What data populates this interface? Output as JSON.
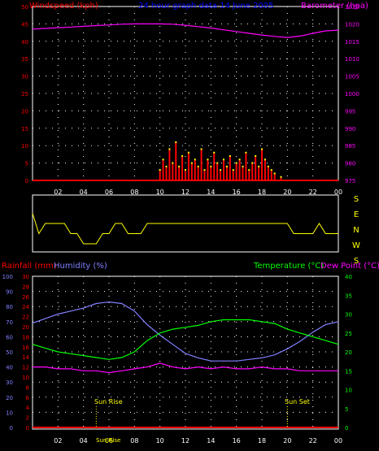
{
  "header": {
    "windspeed_label": "Windspeed (kph)",
    "title": "24 hour graph data  14 June 2005",
    "barometer_label": "Barometer (hpa)"
  },
  "legends": {
    "rainfall": "Rainfall (mm)",
    "humidity": "Humidity (%)",
    "temperature": "Temperature (°C)",
    "dewpoint": "Dew Point (°C)"
  },
  "compass_letters": [
    "S",
    "E",
    "N",
    "W",
    "S"
  ],
  "annotations": {
    "sunrise": "Sun Rise",
    "sunset": "Sun Set",
    "sunrise_time": "Sun Rise"
  },
  "colors": {
    "bg": "#000000",
    "grid": "#ffffff",
    "wind": "#ff0000",
    "gust": "#ffff00",
    "barometer": "#ff00ff",
    "direction": "#ffff00",
    "humidity": "#8080ff",
    "temperature": "#00ff00",
    "dewpoint": "#ff00ff",
    "rain": "#ff0000",
    "title": "#0000ff",
    "tick_yellow": "#ffff00"
  },
  "chart_data": [
    {
      "type": "line",
      "title": "24 hour graph data  14 June 2005",
      "x_ticks": [
        "02",
        "04",
        "06",
        "08",
        "10",
        "12",
        "14",
        "16",
        "18",
        "20",
        "22",
        "00"
      ],
      "y_left_label": "Windspeed (kph)",
      "y_left_ticks": [
        0,
        5,
        10,
        15,
        20,
        25,
        30,
        35,
        40,
        45,
        50
      ],
      "y_left_range": [
        0,
        50
      ],
      "y_right_label": "Barometer (hpa)",
      "y_right_ticks": [
        975,
        980,
        985,
        990,
        995,
        1000,
        1005,
        1010,
        1015,
        1020,
        1025
      ],
      "y_right_range": [
        975,
        1025
      ],
      "grid": true,
      "series": [
        {
          "name": "Barometer (hpa)",
          "axis": "right",
          "x": [
            0,
            1,
            2,
            3,
            4,
            5,
            6,
            7,
            8,
            9,
            10,
            11,
            12,
            13,
            14,
            15,
            16,
            17,
            18,
            19,
            20,
            21,
            22,
            23,
            24
          ],
          "values": [
            1018.5,
            1018.7,
            1018.9,
            1019.1,
            1019.3,
            1019.5,
            1019.7,
            1019.9,
            1020.0,
            1020.0,
            1020.0,
            1019.9,
            1019.6,
            1019.2,
            1018.8,
            1018.3,
            1017.8,
            1017.3,
            1016.8,
            1016.4,
            1016.1,
            1016.5,
            1017.3,
            1018.0,
            1018.2
          ]
        },
        {
          "name": "Windspeed (kph)",
          "axis": "left",
          "x": [
            0,
            1,
            2,
            3,
            4,
            5,
            6,
            7,
            8,
            9,
            9.5,
            10,
            10.25,
            10.5,
            10.75,
            11,
            11.25,
            11.5,
            11.75,
            12,
            12.25,
            12.5,
            12.75,
            13,
            13.25,
            13.5,
            13.75,
            14,
            14.25,
            14.5,
            14.75,
            15,
            15.25,
            15.5,
            15.75,
            16,
            16.25,
            16.5,
            16.75,
            17,
            17.25,
            17.5,
            17.75,
            18,
            18.25,
            18.5,
            18.75,
            19,
            19.5,
            20,
            21,
            22,
            23,
            24
          ],
          "values": [
            0,
            0,
            0,
            0,
            0,
            0,
            0,
            0,
            0,
            0,
            0,
            3,
            6,
            4,
            9,
            5,
            11,
            4,
            7,
            3,
            8,
            5,
            6,
            4,
            9,
            3,
            6,
            4,
            8,
            5,
            3,
            6,
            4,
            7,
            3,
            5,
            6,
            4,
            8,
            3,
            5,
            7,
            4,
            9,
            6,
            4,
            3,
            2,
            1,
            0,
            0,
            0,
            0,
            0
          ]
        }
      ]
    },
    {
      "type": "line",
      "title": "",
      "x_ticks": [
        "02",
        "04",
        "06",
        "08",
        "10",
        "12",
        "14",
        "16",
        "18",
        "20",
        "22",
        "00"
      ],
      "y_labels": [
        "S",
        "E",
        "N",
        "W",
        "S"
      ],
      "series": [
        {
          "name": "",
          "x": [
            0,
            0.5,
            1,
            1.5,
            2,
            2.5,
            3,
            3.5,
            4,
            4.5,
            5,
            5.5,
            6,
            6.5,
            7,
            7.5,
            8,
            8.5,
            9,
            9.5,
            10,
            11,
            12,
            13,
            14,
            15,
            16,
            17,
            18,
            19,
            20,
            20.5,
            21,
            22,
            22.5,
            23,
            24
          ],
          "values": [
            "W",
            "E",
            "N",
            "N",
            "N",
            "N",
            "E",
            "E",
            "S",
            "S",
            "S",
            "E",
            "E",
            "N",
            "N",
            "E",
            "E",
            "E",
            "N",
            "N",
            "N",
            "N",
            "N",
            "N",
            "N",
            "N",
            "N",
            "N",
            "N",
            "N",
            "N",
            "E",
            "E",
            "E",
            "N",
            "E",
            "E"
          ]
        }
      ]
    },
    {
      "type": "line",
      "title": "",
      "x_ticks": [
        "02",
        "04",
        "06",
        "08",
        "10",
        "12",
        "14",
        "16",
        "18",
        "20",
        "22",
        "00"
      ],
      "y_humidity_label": "Humidity (%)",
      "y_humidity_ticks": [
        0,
        10,
        20,
        30,
        40,
        50,
        60,
        70,
        80,
        90,
        100
      ],
      "y_humidity_range": [
        0,
        100
      ],
      "y_rain_label": "Rainfall (mm)",
      "y_rain_ticks": [
        0,
        2,
        4,
        6,
        8,
        10,
        12,
        14,
        16,
        18,
        20,
        22,
        24,
        26,
        28,
        30
      ],
      "y_rain_range": [
        0,
        30
      ],
      "y_temp_label": "Temperature (°C)",
      "y_temp_ticks": [
        0,
        5,
        10,
        15,
        20,
        25,
        30,
        35,
        40
      ],
      "y_temp_range": [
        0,
        40
      ],
      "grid": true,
      "series": [
        {
          "name": "Humidity (%)",
          "axis": "humidity",
          "x": [
            0,
            1,
            2,
            3,
            4,
            5,
            6,
            7,
            8,
            9,
            10,
            11,
            12,
            13,
            14,
            15,
            16,
            17,
            18,
            19,
            20,
            21,
            22,
            23,
            24
          ],
          "values": [
            69,
            72,
            75,
            77,
            79,
            82,
            83,
            82,
            77,
            68,
            61,
            55,
            49,
            46,
            44,
            44,
            44,
            45,
            46,
            48,
            52,
            57,
            63,
            68,
            70
          ]
        },
        {
          "name": "Temperature (°C)",
          "axis": "temp",
          "x": [
            0,
            1,
            2,
            3,
            4,
            5,
            6,
            7,
            8,
            9,
            10,
            11,
            12,
            13,
            14,
            15,
            16,
            17,
            18,
            19,
            20,
            21,
            22,
            23,
            24
          ],
          "values": [
            22,
            21,
            20,
            19.5,
            19,
            18.5,
            18,
            18.5,
            20,
            23,
            25,
            26,
            26.5,
            27,
            28,
            28.5,
            28.5,
            28.5,
            28,
            27.5,
            26,
            25,
            24,
            23,
            22
          ]
        },
        {
          "name": "Dew Point (°C)",
          "axis": "temp",
          "x": [
            0,
            1,
            2,
            3,
            4,
            5,
            6,
            7,
            8,
            9,
            10,
            11,
            12,
            13,
            14,
            15,
            16,
            17,
            18,
            19,
            20,
            21,
            22,
            23,
            24
          ],
          "values": [
            16,
            16,
            15.5,
            15.5,
            15,
            15,
            14.5,
            15,
            15.5,
            16,
            17,
            16,
            15.5,
            16,
            15.5,
            16,
            15.5,
            15.5,
            16,
            15.5,
            15.5,
            15,
            15,
            15,
            15
          ]
        },
        {
          "name": "Rainfall (mm)",
          "axis": "rain",
          "x": [
            0,
            24
          ],
          "values": [
            0,
            0
          ]
        }
      ],
      "annotations": [
        {
          "label": "Sun Rise",
          "x": 5
        },
        {
          "label": "Sun Set",
          "x": 20
        }
      ]
    }
  ]
}
